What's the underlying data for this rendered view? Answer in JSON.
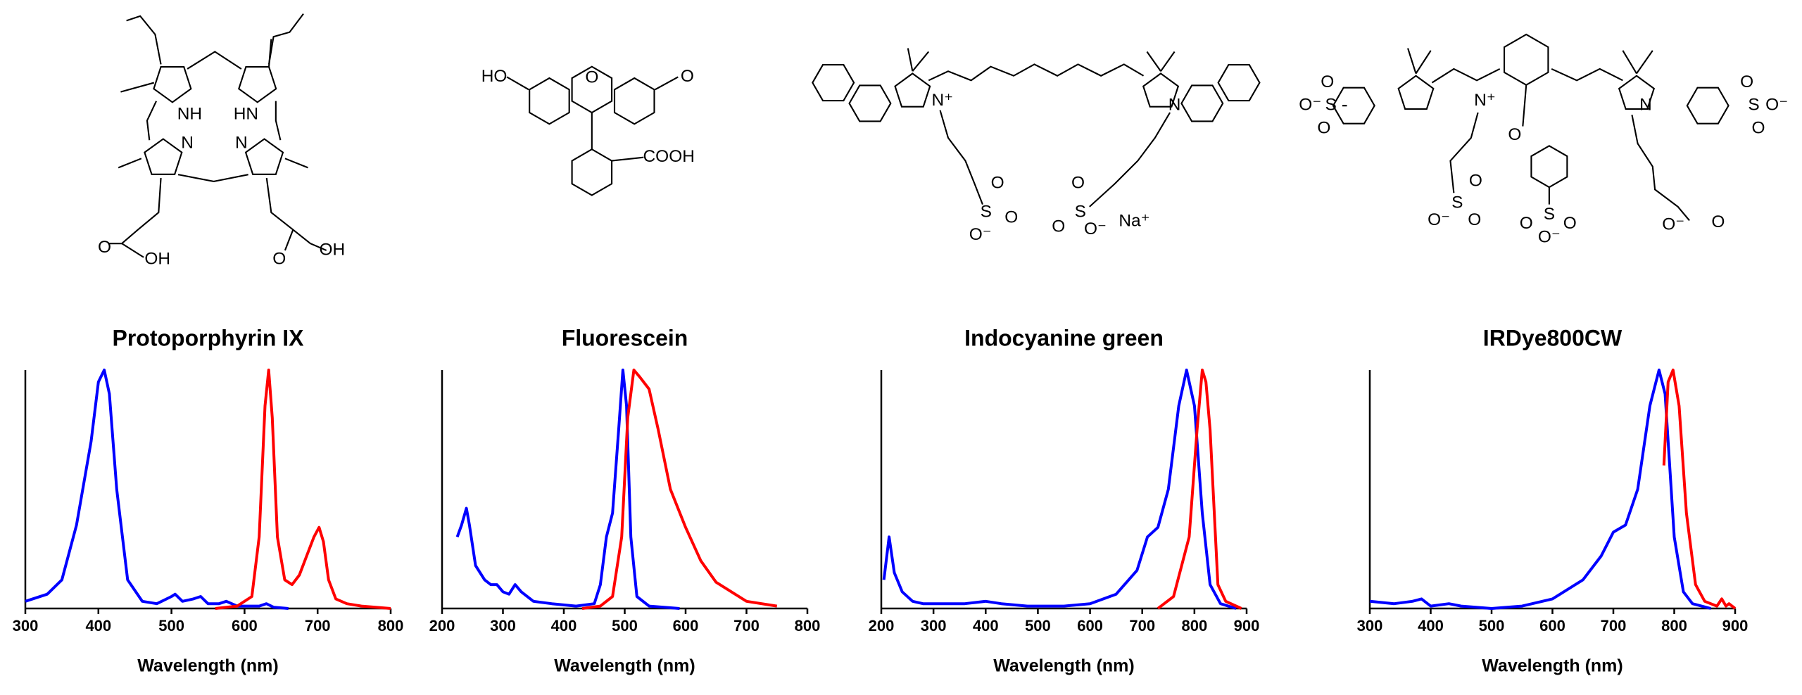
{
  "structures": [
    {
      "labels": [
        "NH",
        "HN",
        "N",
        "N",
        "O",
        "OH",
        "O",
        "OH"
      ]
    },
    {
      "labels": [
        "HO",
        "O",
        "O",
        "COOH"
      ]
    },
    {
      "labels": [
        "N⁺",
        "S",
        "O",
        "O",
        "O⁻",
        "S",
        "O",
        "O",
        "O⁻",
        "N",
        "Na⁺"
      ]
    },
    {
      "labels": [
        "O",
        "O⁻",
        "S",
        "O",
        "N⁺",
        "O",
        "N",
        "S",
        "O",
        "O⁻",
        "O",
        "S",
        "O",
        "O",
        "O⁻",
        "S",
        "O",
        "O",
        "O⁻",
        "O⁻",
        "O"
      ]
    }
  ],
  "chart_data": [
    {
      "type": "line",
      "title": "Protoporphyrin IX",
      "xlabel": "Wavelength (nm)",
      "xlim": [
        300,
        800
      ],
      "xticks": [
        300,
        400,
        500,
        600,
        700,
        800
      ],
      "ylim": [
        0,
        1
      ],
      "series": [
        {
          "color": "#0000ff",
          "x": [
            300,
            330,
            350,
            370,
            390,
            400,
            408,
            415,
            425,
            440,
            460,
            480,
            500,
            505,
            515,
            530,
            540,
            550,
            565,
            575,
            590,
            620,
            630,
            640,
            660
          ],
          "values": [
            0.03,
            0.06,
            0.12,
            0.35,
            0.7,
            0.95,
            1.0,
            0.9,
            0.5,
            0.12,
            0.03,
            0.02,
            0.05,
            0.06,
            0.03,
            0.04,
            0.05,
            0.02,
            0.02,
            0.03,
            0.01,
            0.01,
            0.02,
            0.005,
            0
          ]
        },
        {
          "color": "#ff0000",
          "x": [
            560,
            590,
            610,
            620,
            628,
            633,
            638,
            645,
            655,
            665,
            675,
            685,
            695,
            702,
            708,
            715,
            725,
            740,
            760,
            800
          ],
          "values": [
            0,
            0.01,
            0.05,
            0.3,
            0.85,
            1.0,
            0.8,
            0.3,
            0.12,
            0.1,
            0.14,
            0.22,
            0.3,
            0.34,
            0.28,
            0.12,
            0.04,
            0.02,
            0.01,
            0
          ]
        }
      ]
    },
    {
      "type": "line",
      "title": "Fluorescein",
      "xlabel": "Wavelength (nm)",
      "xlim": [
        200,
        800
      ],
      "xticks": [
        200,
        300,
        400,
        500,
        600,
        700,
        800
      ],
      "ylim": [
        0,
        1
      ],
      "series": [
        {
          "color": "#0000ff",
          "x": [
            225,
            232,
            240,
            245,
            255,
            270,
            280,
            290,
            300,
            310,
            320,
            330,
            350,
            380,
            420,
            450,
            460,
            470,
            480,
            490,
            497,
            503,
            510,
            520,
            540,
            590
          ],
          "values": [
            0.3,
            0.35,
            0.42,
            0.35,
            0.18,
            0.12,
            0.1,
            0.1,
            0.07,
            0.06,
            0.1,
            0.07,
            0.03,
            0.02,
            0.01,
            0.02,
            0.1,
            0.3,
            0.4,
            0.75,
            1.0,
            0.85,
            0.3,
            0.05,
            0.01,
            0
          ]
        },
        {
          "color": "#ff0000",
          "x": [
            430,
            460,
            480,
            495,
            505,
            515,
            525,
            540,
            555,
            575,
            600,
            625,
            650,
            700,
            750
          ],
          "values": [
            0,
            0.01,
            0.05,
            0.3,
            0.8,
            1.0,
            0.97,
            0.92,
            0.75,
            0.5,
            0.34,
            0.2,
            0.11,
            0.03,
            0.01
          ]
        }
      ]
    },
    {
      "type": "line",
      "title": "Indocyanine green",
      "xlabel": "Wavelength (nm)",
      "xlim": [
        200,
        900
      ],
      "xticks": [
        200,
        300,
        400,
        500,
        600,
        700,
        800,
        900
      ],
      "ylim": [
        0,
        1
      ],
      "series": [
        {
          "color": "#0000ff",
          "x": [
            205,
            215,
            225,
            240,
            260,
            280,
            320,
            360,
            400,
            430,
            480,
            550,
            600,
            650,
            690,
            710,
            730,
            750,
            770,
            785,
            800,
            815,
            830,
            850,
            880
          ],
          "values": [
            0.12,
            0.3,
            0.15,
            0.07,
            0.03,
            0.02,
            0.02,
            0.02,
            0.03,
            0.02,
            0.01,
            0.01,
            0.02,
            0.06,
            0.16,
            0.3,
            0.34,
            0.5,
            0.85,
            1.0,
            0.85,
            0.4,
            0.1,
            0.02,
            0
          ]
        },
        {
          "color": "#ff0000",
          "x": [
            730,
            760,
            790,
            805,
            815,
            822,
            830,
            845,
            860,
            890
          ],
          "values": [
            0,
            0.05,
            0.3,
            0.75,
            1.0,
            0.95,
            0.75,
            0.1,
            0.03,
            0
          ]
        }
      ]
    },
    {
      "type": "line",
      "title": "IRDye800CW",
      "xlabel": "Wavelength (nm)",
      "xlim": [
        300,
        900
      ],
      "xticks": [
        300,
        400,
        500,
        600,
        700,
        800,
        900
      ],
      "ylim": [
        0,
        1
      ],
      "series": [
        {
          "color": "#0000ff",
          "x": [
            300,
            340,
            370,
            385,
            400,
            430,
            450,
            500,
            550,
            600,
            650,
            680,
            700,
            720,
            740,
            760,
            775,
            785,
            800,
            815,
            830,
            860
          ],
          "values": [
            0.03,
            0.02,
            0.03,
            0.04,
            0.01,
            0.02,
            0.01,
            0,
            0.01,
            0.04,
            0.12,
            0.22,
            0.32,
            0.35,
            0.5,
            0.85,
            1.0,
            0.9,
            0.3,
            0.07,
            0.02,
            0
          ]
        },
        {
          "color": "#ff0000",
          "x": [
            783,
            790,
            798,
            808,
            820,
            835,
            850,
            870,
            878,
            885,
            890,
            900
          ],
          "values": [
            0.6,
            0.95,
            1.0,
            0.85,
            0.4,
            0.1,
            0.03,
            0.01,
            0.04,
            0.01,
            0.02,
            0
          ]
        }
      ]
    }
  ]
}
